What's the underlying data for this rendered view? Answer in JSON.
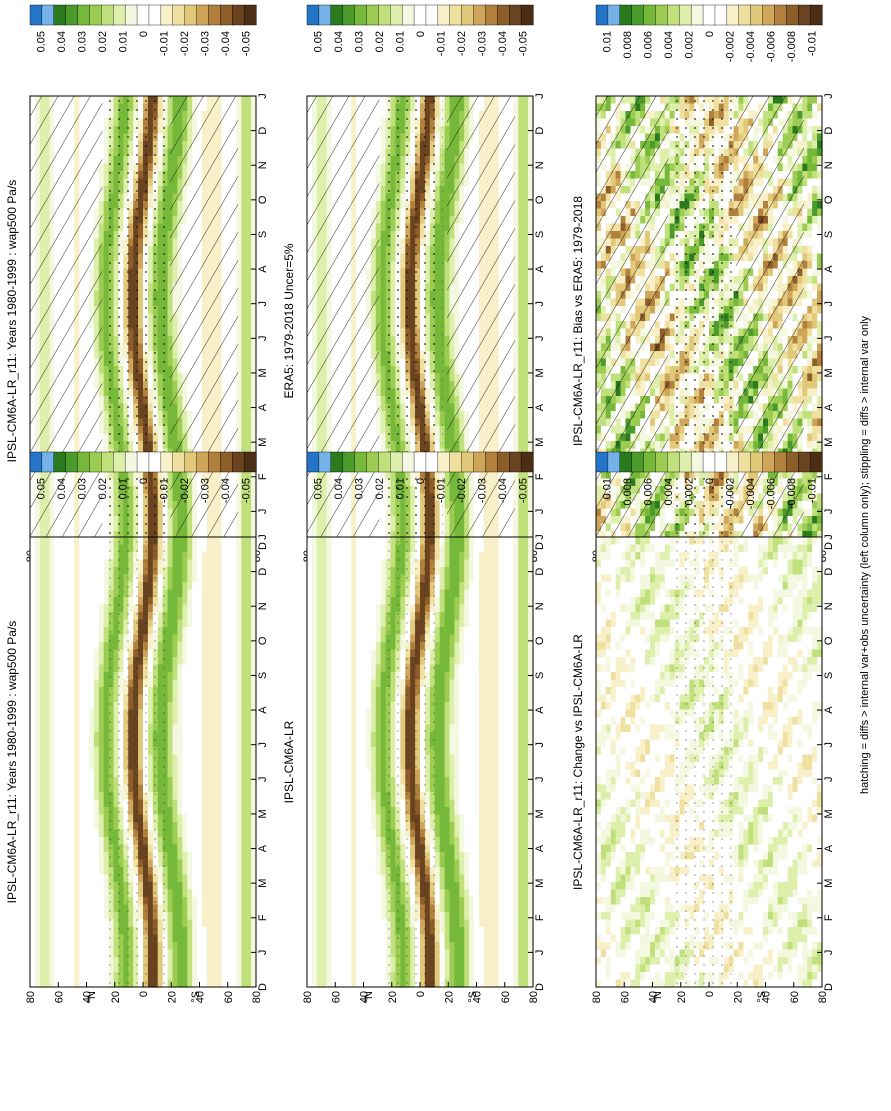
{
  "figure": {
    "footnote": "hatching = diffs > internal var+obs uncertainty (left column only); stippling = diffs > internal var only"
  },
  "palette": {
    "colors": [
      "#2474c8",
      "#74b2e8",
      "#2a7a1e",
      "#4b9a2c",
      "#76b83a",
      "#9ccc52",
      "#c0e07c",
      "#ddefaa",
      "#f4f8e0",
      "#ffffff",
      "#ffffff",
      "#f8f0c8",
      "#efe0a0",
      "#e2c879",
      "#cfa55a",
      "#b0803c",
      "#8e5e2a",
      "#6a4420",
      "#4c2e16"
    ]
  },
  "colorbars": {
    "main": [
      "0.05",
      "0.04",
      "0.03",
      "0.02",
      "0.01",
      "0",
      "-0.01",
      "-0.02",
      "-0.03",
      "-0.04",
      "-0.05"
    ],
    "diff": [
      "0.01",
      "0.008",
      "0.006",
      "0.004",
      "0.002",
      "0",
      "-0.002",
      "-0.004",
      "-0.006",
      "-0.008",
      "-0.01"
    ]
  },
  "chart_data": [
    {
      "type": "heatmap",
      "title": "IPSL-CM6A-LR_r11: Years 1980-1999 : wap500 Pa/s",
      "x": [
        "D",
        "J",
        "F",
        "M",
        "A",
        "M",
        "J",
        "J",
        "A",
        "S",
        "O",
        "N",
        "D",
        "J"
      ],
      "y": [
        "80",
        "60",
        "40",
        "20",
        "0",
        "20",
        "40",
        "60",
        "80"
      ],
      "ylabel_north": "°N",
      "ylabel_south": "°S",
      "colorbar": "main",
      "hatching": true,
      "stippling": true
    },
    {
      "type": "heatmap",
      "title": "IPSL-CM6A-LR_r11: Years 1980-1999 : wap500 Pa/s",
      "x": [
        "D",
        "J",
        "F",
        "M",
        "A",
        "M",
        "J",
        "J",
        "A",
        "S",
        "O",
        "N",
        "D",
        "J"
      ],
      "y": [
        "80",
        "60",
        "40",
        "20",
        "0",
        "20",
        "40",
        "60",
        "80"
      ],
      "ylabel_north": "°N",
      "ylabel_south": "°S",
      "colorbar": "main",
      "hatching": false,
      "stippling": true
    },
    {
      "type": "heatmap",
      "title": "ERA5: 1979-2018 Uncer=5%",
      "x": [
        "D",
        "J",
        "F",
        "M",
        "A",
        "M",
        "J",
        "J",
        "A",
        "S",
        "O",
        "N",
        "D",
        "J"
      ],
      "y": [
        "80",
        "60",
        "40",
        "20",
        "0",
        "20",
        "40",
        "60",
        "80"
      ],
      "ylabel_north": "°N",
      "ylabel_south": "°S",
      "colorbar": "main",
      "hatching": true,
      "stippling": true
    },
    {
      "type": "heatmap",
      "title": "IPSL-CM6A-LR",
      "x": [
        "D",
        "J",
        "F",
        "M",
        "A",
        "M",
        "J",
        "J",
        "A",
        "S",
        "O",
        "N",
        "D",
        "J"
      ],
      "y": [
        "80",
        "60",
        "40",
        "20",
        "0",
        "20",
        "40",
        "60",
        "80"
      ],
      "ylabel_north": "°N",
      "ylabel_south": "°S",
      "colorbar": "main",
      "hatching": false,
      "stippling": true
    },
    {
      "type": "heatmap",
      "title": "IPSL-CM6A-LR_r11: Bias vs ERA5: 1979-2018",
      "x": [
        "D",
        "J",
        "F",
        "M",
        "A",
        "M",
        "J",
        "J",
        "A",
        "S",
        "O",
        "N",
        "D",
        "J"
      ],
      "y": [
        "80",
        "60",
        "40",
        "20",
        "0",
        "20",
        "40",
        "60",
        "80"
      ],
      "ylabel_north": "°N",
      "ylabel_south": "°S",
      "colorbar": "diff",
      "hatching": true,
      "stippling": true
    },
    {
      "type": "heatmap",
      "title": "IPSL-CM6A-LR_r11: Change vs IPSL-CM6A-LR",
      "x": [
        "D",
        "J",
        "F",
        "M",
        "A",
        "M",
        "J",
        "J",
        "A",
        "S",
        "O",
        "N",
        "D",
        "J"
      ],
      "y": [
        "80",
        "60",
        "40",
        "20",
        "0",
        "20",
        "40",
        "60",
        "80"
      ],
      "ylabel_north": "°N",
      "ylabel_south": "°S",
      "colorbar": "diff",
      "hatching": false,
      "stippling": true
    }
  ]
}
